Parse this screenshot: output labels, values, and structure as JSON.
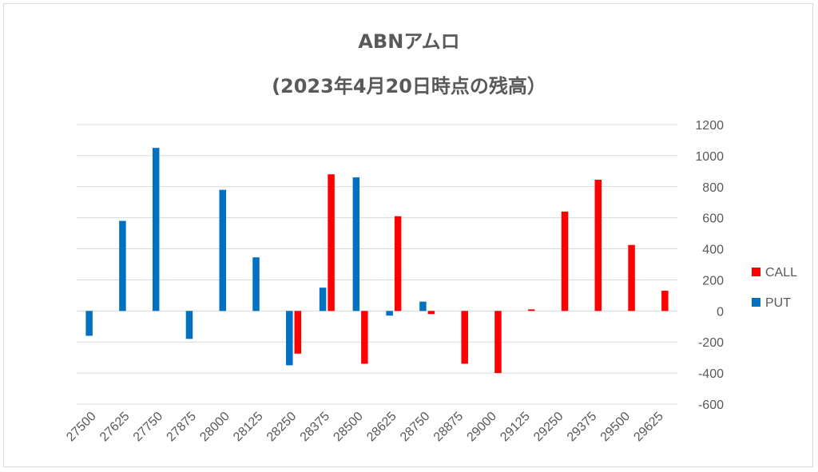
{
  "chart_data": {
    "type": "bar",
    "title": "ABNアムロ",
    "subtitle": "(2023年4月20日時点の残高）",
    "categories": [
      "27500",
      "27625",
      "27750",
      "27875",
      "28000",
      "28125",
      "28250",
      "28375",
      "28500",
      "28625",
      "28750",
      "28875",
      "29000",
      "29125",
      "29250",
      "29375",
      "29500",
      "29625"
    ],
    "series": [
      {
        "name": "PUT",
        "color": "#0070c0",
        "values": [
          -160,
          580,
          1050,
          -180,
          780,
          345,
          -350,
          150,
          860,
          -30,
          60,
          0,
          0,
          0,
          0,
          0,
          0,
          0
        ]
      },
      {
        "name": "CALL",
        "color": "#ff0000",
        "values": [
          0,
          0,
          0,
          0,
          0,
          0,
          -275,
          880,
          -340,
          610,
          -20,
          -340,
          -400,
          10,
          640,
          845,
          425,
          130
        ]
      }
    ],
    "ylim": [
      -600,
      1200
    ],
    "yticks": [
      "1200",
      "1000",
      "800",
      "600",
      "400",
      "200",
      "0",
      "-200",
      "-400",
      "-600"
    ],
    "y_axis_side": "right",
    "grid": true,
    "legend_position": "right",
    "legend": [
      {
        "name": "CALL",
        "color": "#ff0000"
      },
      {
        "name": "PUT",
        "color": "#0070c0"
      }
    ]
  }
}
